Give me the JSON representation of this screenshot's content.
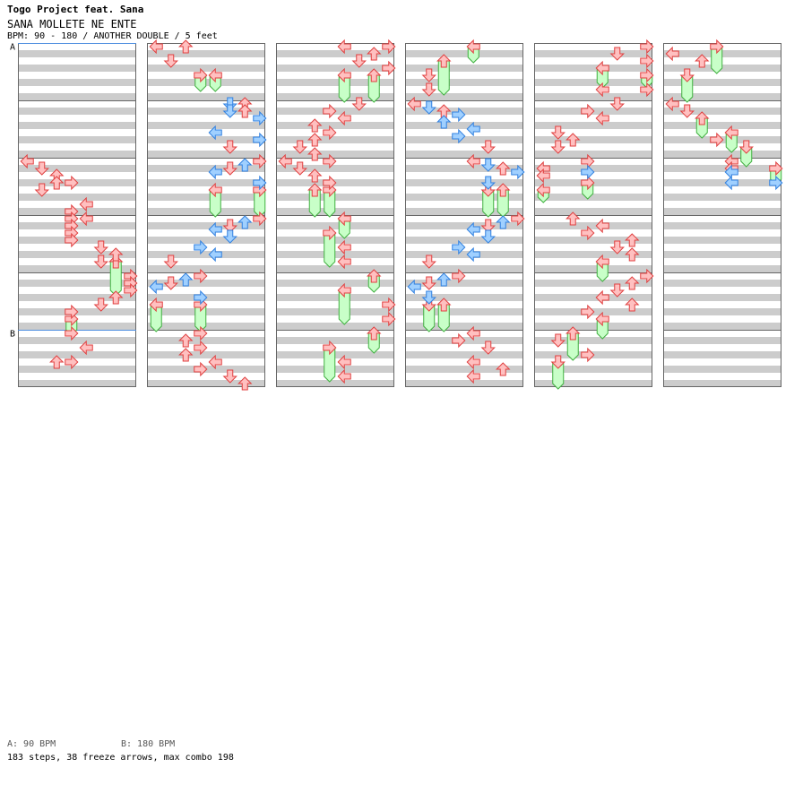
{
  "header": {
    "artist": "Togo Project feat. Sana",
    "title": "SANA MOLLETE NE ENTE",
    "bpm_line": "BPM: 90 - 180 / ANOTHER DOUBLE / 5 feet"
  },
  "footer": {
    "bpm_a": "A: 90 BPM",
    "bpm_b": "B: 180 BPM",
    "stats": "183 steps, 38 freeze arrows, max combo 198"
  },
  "markers": [
    {
      "label": "A",
      "column": 0,
      "row": 0
    },
    {
      "label": "B",
      "column": 0,
      "row": 40
    }
  ],
  "colors": {
    "band": "#cccccc",
    "border": "#666666",
    "marker_line": "#4f8fe0",
    "arrow_red_fill": "#ffc0c0",
    "arrow_red_stroke": "#e04040",
    "arrow_blue_fill": "#a0d0ff",
    "arrow_blue_stroke": "#3080e0",
    "freeze_fill": "#c8ffc8",
    "freeze_stroke": "#40b040"
  },
  "chart_data": {
    "type": "step-chart",
    "columns": 6,
    "rows_per_column": 48,
    "lanes": 8,
    "lane_directions": [
      "left",
      "down",
      "up",
      "right",
      "left",
      "down",
      "up",
      "right"
    ],
    "freezes": [
      {
        "col": 0,
        "lane": 6,
        "start": 30,
        "end": 34.5
      },
      {
        "col": 0,
        "lane": 3,
        "start": 38,
        "end": 40
      },
      {
        "col": 1,
        "lane": 3,
        "start": 4,
        "end": 6
      },
      {
        "col": 1,
        "lane": 4,
        "start": 4,
        "end": 6
      },
      {
        "col": 1,
        "lane": 4,
        "start": 20,
        "end": 23.5
      },
      {
        "col": 1,
        "lane": 7,
        "start": 20,
        "end": 23.5
      },
      {
        "col": 1,
        "lane": 0,
        "start": 36,
        "end": 39.5
      },
      {
        "col": 1,
        "lane": 3,
        "start": 36,
        "end": 39.5
      },
      {
        "col": 2,
        "lane": 4,
        "start": 4,
        "end": 7.5
      },
      {
        "col": 2,
        "lane": 6,
        "start": 4,
        "end": 7.5
      },
      {
        "col": 2,
        "lane": 2,
        "start": 20,
        "end": 23.5
      },
      {
        "col": 2,
        "lane": 3,
        "start": 20,
        "end": 23.5
      },
      {
        "col": 2,
        "lane": 4,
        "start": 24,
        "end": 26.5
      },
      {
        "col": 2,
        "lane": 3,
        "start": 26,
        "end": 30.5
      },
      {
        "col": 2,
        "lane": 6,
        "start": 32,
        "end": 34
      },
      {
        "col": 2,
        "lane": 4,
        "start": 34,
        "end": 38.5
      },
      {
        "col": 2,
        "lane": 6,
        "start": 40,
        "end": 42.5
      },
      {
        "col": 2,
        "lane": 3,
        "start": 42,
        "end": 46.5
      },
      {
        "col": 3,
        "lane": 4,
        "start": 0,
        "end": 2
      },
      {
        "col": 3,
        "lane": 2,
        "start": 2,
        "end": 6.5
      },
      {
        "col": 3,
        "lane": 5,
        "start": 20,
        "end": 23.5
      },
      {
        "col": 3,
        "lane": 6,
        "start": 20,
        "end": 23.5
      },
      {
        "col": 3,
        "lane": 1,
        "start": 36,
        "end": 39.5
      },
      {
        "col": 3,
        "lane": 2,
        "start": 36,
        "end": 39.5
      },
      {
        "col": 4,
        "lane": 4,
        "start": 3,
        "end": 5.5
      },
      {
        "col": 4,
        "lane": 7,
        "start": 4,
        "end": 5.5
      },
      {
        "col": 4,
        "lane": 0,
        "start": 20,
        "end": 21.5
      },
      {
        "col": 4,
        "lane": 3,
        "start": 19,
        "end": 21
      },
      {
        "col": 4,
        "lane": 4,
        "start": 30,
        "end": 32.5
      },
      {
        "col": 4,
        "lane": 4,
        "start": 38,
        "end": 40.5
      },
      {
        "col": 4,
        "lane": 2,
        "start": 40,
        "end": 43.5
      },
      {
        "col": 4,
        "lane": 1,
        "start": 44,
        "end": 47.5
      },
      {
        "col": 5,
        "lane": 3,
        "start": 0,
        "end": 3.5
      },
      {
        "col": 5,
        "lane": 1,
        "start": 4,
        "end": 7.5
      },
      {
        "col": 5,
        "lane": 2,
        "start": 10,
        "end": 12.5
      },
      {
        "col": 5,
        "lane": 4,
        "start": 12,
        "end": 14.5
      },
      {
        "col": 5,
        "lane": 5,
        "start": 14,
        "end": 16.5
      },
      {
        "col": 5,
        "lane": 7,
        "start": 17,
        "end": 19
      }
    ],
    "arrows": [
      {
        "col": 0,
        "lane": 0,
        "row": 16
      },
      {
        "col": 0,
        "lane": 1,
        "row": 17
      },
      {
        "col": 0,
        "lane": 2,
        "row": 18
      },
      {
        "col": 0,
        "lane": 2,
        "row": 19
      },
      {
        "col": 0,
        "lane": 3,
        "row": 19
      },
      {
        "col": 0,
        "lane": 1,
        "row": 20
      },
      {
        "col": 0,
        "lane": 4,
        "row": 22
      },
      {
        "col": 0,
        "lane": 3,
        "row": 23
      },
      {
        "col": 0,
        "lane": 3,
        "row": 24
      },
      {
        "col": 0,
        "lane": 4,
        "row": 24
      },
      {
        "col": 0,
        "lane": 3,
        "row": 25
      },
      {
        "col": 0,
        "lane": 3,
        "row": 26
      },
      {
        "col": 0,
        "lane": 3,
        "row": 27
      },
      {
        "col": 0,
        "lane": 5,
        "row": 28
      },
      {
        "col": 0,
        "lane": 6,
        "row": 29
      },
      {
        "col": 0,
        "lane": 5,
        "row": 30
      },
      {
        "col": 0,
        "lane": 7,
        "row": 32
      },
      {
        "col": 0,
        "lane": 7,
        "row": 33
      },
      {
        "col": 0,
        "lane": 7,
        "row": 34
      },
      {
        "col": 0,
        "lane": 6,
        "row": 35
      },
      {
        "col": 0,
        "lane": 5,
        "row": 36
      },
      {
        "col": 0,
        "lane": 3,
        "row": 37
      },
      {
        "col": 0,
        "lane": 3,
        "row": 40
      },
      {
        "col": 0,
        "lane": 4,
        "row": 42
      },
      {
        "col": 0,
        "lane": 2,
        "row": 44
      },
      {
        "col": 0,
        "lane": 3,
        "row": 44
      },
      {
        "col": 1,
        "lane": 0,
        "row": 0
      },
      {
        "col": 1,
        "lane": 2,
        "row": 0
      },
      {
        "col": 1,
        "lane": 1,
        "row": 2
      },
      {
        "col": 1,
        "lane": 5,
        "row": 8,
        "c": "b"
      },
      {
        "col": 1,
        "lane": 6,
        "row": 8
      },
      {
        "col": 1,
        "lane": 5,
        "row": 9,
        "c": "b"
      },
      {
        "col": 1,
        "lane": 6,
        "row": 9
      },
      {
        "col": 1,
        "lane": 7,
        "row": 10,
        "c": "b"
      },
      {
        "col": 1,
        "lane": 4,
        "row": 12,
        "c": "b"
      },
      {
        "col": 1,
        "lane": 7,
        "row": 13,
        "c": "b"
      },
      {
        "col": 1,
        "lane": 5,
        "row": 14
      },
      {
        "col": 1,
        "lane": 7,
        "row": 16
      },
      {
        "col": 1,
        "lane": 6,
        "row": 16.5,
        "c": "b"
      },
      {
        "col": 1,
        "lane": 5,
        "row": 17
      },
      {
        "col": 1,
        "lane": 4,
        "row": 17.5,
        "c": "b"
      },
      {
        "col": 1,
        "lane": 7,
        "row": 19,
        "c": "b"
      },
      {
        "col": 1,
        "lane": 7,
        "row": 24
      },
      {
        "col": 1,
        "lane": 6,
        "row": 24.5,
        "c": "b"
      },
      {
        "col": 1,
        "lane": 5,
        "row": 25
      },
      {
        "col": 1,
        "lane": 4,
        "row": 25.5,
        "c": "b"
      },
      {
        "col": 1,
        "lane": 5,
        "row": 26.5,
        "c": "b"
      },
      {
        "col": 1,
        "lane": 3,
        "row": 28,
        "c": "b"
      },
      {
        "col": 1,
        "lane": 4,
        "row": 29,
        "c": "b"
      },
      {
        "col": 1,
        "lane": 1,
        "row": 30
      },
      {
        "col": 1,
        "lane": 3,
        "row": 32
      },
      {
        "col": 1,
        "lane": 2,
        "row": 32.5,
        "c": "b"
      },
      {
        "col": 1,
        "lane": 1,
        "row": 33
      },
      {
        "col": 1,
        "lane": 0,
        "row": 33.5,
        "c": "b"
      },
      {
        "col": 1,
        "lane": 3,
        "row": 35,
        "c": "b"
      },
      {
        "col": 1,
        "lane": 3,
        "row": 40
      },
      {
        "col": 1,
        "lane": 2,
        "row": 41
      },
      {
        "col": 1,
        "lane": 3,
        "row": 42
      },
      {
        "col": 1,
        "lane": 2,
        "row": 43
      },
      {
        "col": 1,
        "lane": 4,
        "row": 44
      },
      {
        "col": 1,
        "lane": 3,
        "row": 45
      },
      {
        "col": 1,
        "lane": 5,
        "row": 46
      },
      {
        "col": 1,
        "lane": 6,
        "row": 47
      },
      {
        "col": 2,
        "lane": 4,
        "row": 0
      },
      {
        "col": 2,
        "lane": 7,
        "row": 0
      },
      {
        "col": 2,
        "lane": 6,
        "row": 1
      },
      {
        "col": 2,
        "lane": 5,
        "row": 2
      },
      {
        "col": 2,
        "lane": 7,
        "row": 3
      },
      {
        "col": 2,
        "lane": 5,
        "row": 8
      },
      {
        "col": 2,
        "lane": 3,
        "row": 9
      },
      {
        "col": 2,
        "lane": 4,
        "row": 10
      },
      {
        "col": 2,
        "lane": 2,
        "row": 11
      },
      {
        "col": 2,
        "lane": 3,
        "row": 12
      },
      {
        "col": 2,
        "lane": 2,
        "row": 13
      },
      {
        "col": 2,
        "lane": 1,
        "row": 14
      },
      {
        "col": 2,
        "lane": 2,
        "row": 15
      },
      {
        "col": 2,
        "lane": 0,
        "row": 16
      },
      {
        "col": 2,
        "lane": 3,
        "row": 16
      },
      {
        "col": 2,
        "lane": 1,
        "row": 17
      },
      {
        "col": 2,
        "lane": 2,
        "row": 18
      },
      {
        "col": 2,
        "lane": 3,
        "row": 19
      },
      {
        "col": 2,
        "lane": 4,
        "row": 28
      },
      {
        "col": 2,
        "lane": 4,
        "row": 30
      },
      {
        "col": 2,
        "lane": 7,
        "row": 36
      },
      {
        "col": 2,
        "lane": 7,
        "row": 38
      },
      {
        "col": 2,
        "lane": 4,
        "row": 44
      },
      {
        "col": 2,
        "lane": 4,
        "row": 46
      },
      {
        "col": 3,
        "lane": 0,
        "row": 8
      },
      {
        "col": 3,
        "lane": 1,
        "row": 8.5,
        "c": "b"
      },
      {
        "col": 3,
        "lane": 2,
        "row": 9
      },
      {
        "col": 3,
        "lane": 3,
        "row": 9.5,
        "c": "b"
      },
      {
        "col": 3,
        "lane": 2,
        "row": 10.5,
        "c": "b"
      },
      {
        "col": 3,
        "lane": 4,
        "row": 11.5,
        "c": "b"
      },
      {
        "col": 3,
        "lane": 3,
        "row": 12.5,
        "c": "b"
      },
      {
        "col": 3,
        "lane": 5,
        "row": 14
      },
      {
        "col": 3,
        "lane": 1,
        "row": 4
      },
      {
        "col": 3,
        "lane": 1,
        "row": 6
      },
      {
        "col": 3,
        "lane": 4,
        "row": 16
      },
      {
        "col": 3,
        "lane": 5,
        "row": 16.5,
        "c": "b"
      },
      {
        "col": 3,
        "lane": 6,
        "row": 17
      },
      {
        "col": 3,
        "lane": 7,
        "row": 17.5,
        "c": "b"
      },
      {
        "col": 3,
        "lane": 5,
        "row": 19,
        "c": "b"
      },
      {
        "col": 3,
        "lane": 7,
        "row": 24
      },
      {
        "col": 3,
        "lane": 6,
        "row": 24.5,
        "c": "b"
      },
      {
        "col": 3,
        "lane": 5,
        "row": 25
      },
      {
        "col": 3,
        "lane": 4,
        "row": 25.5,
        "c": "b"
      },
      {
        "col": 3,
        "lane": 5,
        "row": 26.5,
        "c": "b"
      },
      {
        "col": 3,
        "lane": 3,
        "row": 28,
        "c": "b"
      },
      {
        "col": 3,
        "lane": 4,
        "row": 29,
        "c": "b"
      },
      {
        "col": 3,
        "lane": 1,
        "row": 30
      },
      {
        "col": 3,
        "lane": 3,
        "row": 32
      },
      {
        "col": 3,
        "lane": 2,
        "row": 32.5,
        "c": "b"
      },
      {
        "col": 3,
        "lane": 1,
        "row": 33
      },
      {
        "col": 3,
        "lane": 0,
        "row": 33.5,
        "c": "b"
      },
      {
        "col": 3,
        "lane": 1,
        "row": 35,
        "c": "b"
      },
      {
        "col": 3,
        "lane": 4,
        "row": 40
      },
      {
        "col": 3,
        "lane": 3,
        "row": 41
      },
      {
        "col": 3,
        "lane": 5,
        "row": 42
      },
      {
        "col": 3,
        "lane": 4,
        "row": 44
      },
      {
        "col": 3,
        "lane": 6,
        "row": 45
      },
      {
        "col": 3,
        "lane": 4,
        "row": 46
      },
      {
        "col": 4,
        "lane": 7,
        "row": 0
      },
      {
        "col": 4,
        "lane": 5,
        "row": 1
      },
      {
        "col": 4,
        "lane": 7,
        "row": 2
      },
      {
        "col": 4,
        "lane": 7,
        "row": 6
      },
      {
        "col": 4,
        "lane": 4,
        "row": 6
      },
      {
        "col": 4,
        "lane": 5,
        "row": 8
      },
      {
        "col": 4,
        "lane": 3,
        "row": 9
      },
      {
        "col": 4,
        "lane": 4,
        "row": 10
      },
      {
        "col": 4,
        "lane": 1,
        "row": 12
      },
      {
        "col": 4,
        "lane": 2,
        "row": 13
      },
      {
        "col": 4,
        "lane": 1,
        "row": 14
      },
      {
        "col": 4,
        "lane": 3,
        "row": 16
      },
      {
        "col": 4,
        "lane": 0,
        "row": 17
      },
      {
        "col": 4,
        "lane": 0,
        "row": 18
      },
      {
        "col": 4,
        "lane": 3,
        "row": 17.5,
        "c": "b"
      },
      {
        "col": 4,
        "lane": 2,
        "row": 24
      },
      {
        "col": 4,
        "lane": 4,
        "row": 25
      },
      {
        "col": 4,
        "lane": 3,
        "row": 26
      },
      {
        "col": 4,
        "lane": 6,
        "row": 27
      },
      {
        "col": 4,
        "lane": 5,
        "row": 28
      },
      {
        "col": 4,
        "lane": 6,
        "row": 29
      },
      {
        "col": 4,
        "lane": 7,
        "row": 32
      },
      {
        "col": 4,
        "lane": 6,
        "row": 33
      },
      {
        "col": 4,
        "lane": 5,
        "row": 34
      },
      {
        "col": 4,
        "lane": 4,
        "row": 35
      },
      {
        "col": 4,
        "lane": 6,
        "row": 36
      },
      {
        "col": 4,
        "lane": 3,
        "row": 37
      },
      {
        "col": 4,
        "lane": 1,
        "row": 41
      },
      {
        "col": 4,
        "lane": 3,
        "row": 43
      },
      {
        "col": 5,
        "lane": 0,
        "row": 1
      },
      {
        "col": 5,
        "lane": 2,
        "row": 2
      },
      {
        "col": 5,
        "lane": 0,
        "row": 8
      },
      {
        "col": 5,
        "lane": 1,
        "row": 9
      },
      {
        "col": 5,
        "lane": 3,
        "row": 13
      },
      {
        "col": 5,
        "lane": 4,
        "row": 16
      },
      {
        "col": 5,
        "lane": 4,
        "row": 17
      },
      {
        "col": 5,
        "lane": 4,
        "row": 17.5,
        "c": "b"
      },
      {
        "col": 5,
        "lane": 4,
        "row": 19,
        "c": "b"
      },
      {
        "col": 5,
        "lane": 7,
        "row": 19,
        "c": "b"
      }
    ]
  }
}
